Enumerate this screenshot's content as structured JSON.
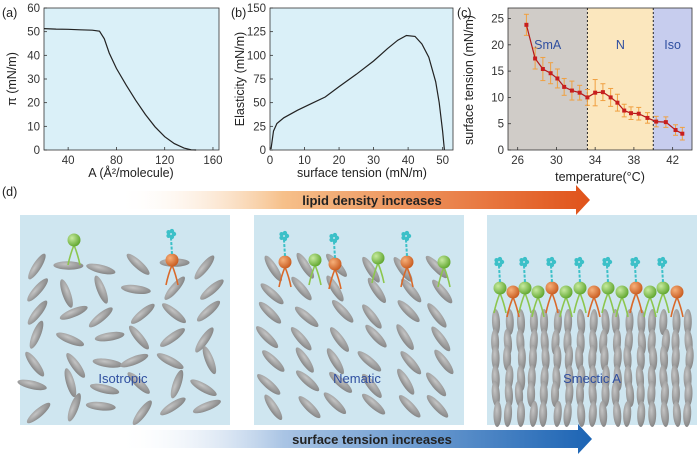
{
  "panels": [
    {
      "label": "(a)",
      "xlabel": "A (Å²/molecule)",
      "ylabel": "π (mN/m)",
      "xticks": [
        "40",
        "80",
        "120",
        "160"
      ],
      "yticks": [
        "0",
        "10",
        "20",
        "30",
        "40",
        "50",
        "60"
      ]
    },
    {
      "label": "(b)",
      "xlabel": "surface tension (mN/m)",
      "ylabel": "Elasticity (mN/m)",
      "xticks": [
        "0",
        "10",
        "20",
        "30",
        "40",
        "50"
      ],
      "yticks": [
        "0",
        "25",
        "50",
        "75",
        "100",
        "125",
        "150"
      ]
    },
    {
      "label": "(c)",
      "xlabel": "temperature(°C)",
      "ylabel": "surface tension (mN/m)",
      "xticks": [
        "26",
        "30",
        "34",
        "38",
        "42"
      ],
      "yticks": [
        "0",
        "5",
        "10",
        "15",
        "20",
        "25"
      ],
      "phases": [
        "SmA",
        "N",
        "Iso"
      ]
    }
  ],
  "panel_d": {
    "label": "(d)",
    "top_arrow": "lipid density increases",
    "bottom_arrow": "surface tension increases",
    "boxes": [
      "Isotropic",
      "Nematic",
      "Smectic A"
    ]
  },
  "colors": {
    "plot_bg": "#daf0f8",
    "smA": "#d0ccc8",
    "nematic": "#fbe7be",
    "iso": "#c7cdee",
    "data_red": "#c81e1e",
    "error_orange": "#f0a040",
    "lc_box": "#cfe6f0",
    "ellipse": "#9c9c9c",
    "lipid_orange": "#e07030",
    "lipid_green": "#7cbf42",
    "cyan_group": "#3cc0c8"
  },
  "chart_data": [
    {
      "type": "line",
      "title": "",
      "xlabel": "A (Å²/molecule)",
      "ylabel": "π (mN/m)",
      "xlim": [
        20,
        165
      ],
      "ylim": [
        0,
        60
      ],
      "series": [
        {
          "x": [
            20,
            30,
            40,
            50,
            60,
            66,
            70,
            74,
            80,
            88,
            96,
            104,
            112,
            120,
            128,
            136,
            142,
            146
          ],
          "y": [
            51.3,
            51.1,
            51.0,
            50.8,
            50.6,
            50.2,
            47.0,
            41.0,
            34.5,
            27.5,
            21.0,
            15.0,
            9.8,
            5.6,
            2.7,
            0.8,
            0.1,
            0
          ]
        }
      ]
    },
    {
      "type": "line",
      "title": "",
      "xlabel": "surface tension (mN/m)",
      "ylabel": "Elasticity (mN/m)",
      "xlim": [
        0,
        53
      ],
      "ylim": [
        0,
        150
      ],
      "series": [
        {
          "x": [
            0.3,
            1,
            2,
            4,
            8,
            12,
            16,
            20,
            25,
            30,
            34,
            37,
            39.5,
            42,
            44,
            46,
            48,
            49,
            50,
            50.5
          ],
          "y": [
            1,
            20,
            28,
            34,
            42,
            49,
            56,
            67,
            80,
            94,
            107,
            116,
            121,
            120,
            112,
            98,
            72,
            50,
            20,
            0
          ]
        }
      ]
    },
    {
      "type": "line",
      "title": "",
      "xlabel": "temperature(°C)",
      "ylabel": "surface tension (mN/m)",
      "xlim": [
        25,
        44
      ],
      "ylim": [
        0,
        27
      ],
      "series": [
        {
          "x": [
            26.9,
            27.8,
            28.6,
            29.4,
            30.1,
            30.8,
            31.6,
            32.4,
            33.2,
            34.0,
            34.8,
            35.6,
            36.3,
            37.0,
            37.7,
            38.5,
            39.4,
            40.3,
            41.3,
            42.3,
            43.0
          ],
          "y": [
            23.8,
            17.4,
            15.4,
            14.6,
            13.6,
            12.0,
            11.3,
            10.9,
            10.0,
            10.9,
            11.0,
            10.0,
            9.0,
            7.5,
            7.0,
            6.9,
            6.1,
            5.4,
            5.3,
            3.8,
            3.1
          ],
          "err": [
            2.0,
            2.0,
            2.2,
            2.0,
            1.8,
            1.6,
            1.8,
            1.4,
            1.5,
            2.5,
            1.6,
            1.7,
            1.6,
            1.2,
            1.2,
            1.2,
            1.0,
            1.0,
            1.0,
            1.0,
            1.2
          ]
        }
      ]
    }
  ]
}
